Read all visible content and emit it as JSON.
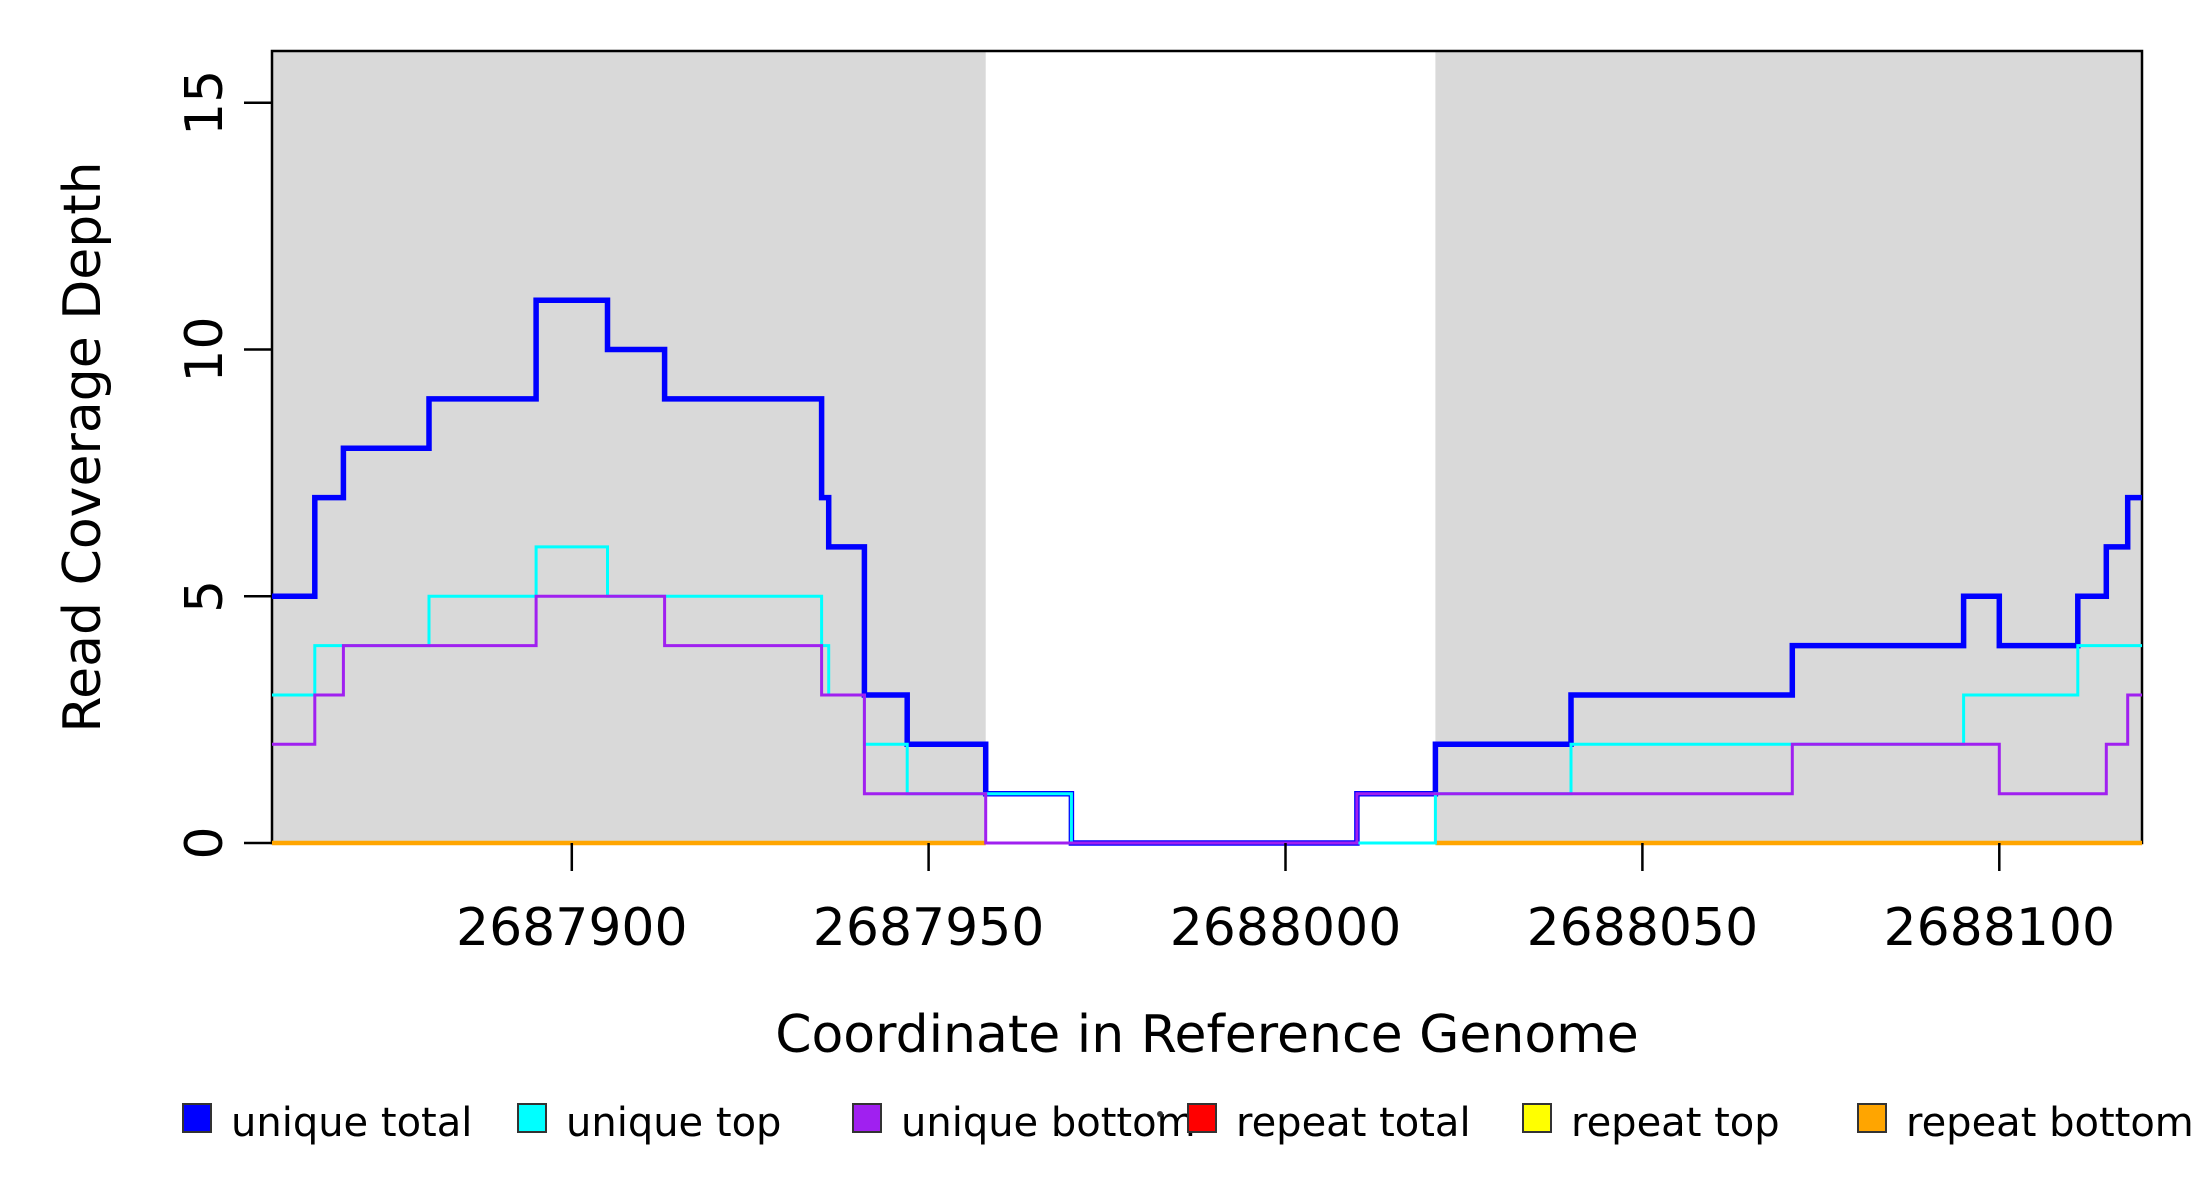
{
  "chart_data": {
    "type": "line",
    "subtype": "step-coverage",
    "title": "",
    "xlabel": "Coordinate in Reference Genome",
    "ylabel": "Read Coverage Depth",
    "xlim": [
      2687858,
      2688120
    ],
    "ylim": [
      0,
      16.05
    ],
    "grid": false,
    "legend_position": "bottom",
    "shade_color": "#D9D9D9",
    "shaded_regions": [
      {
        "from": 2687858,
        "to": 2687958
      },
      {
        "from": 2688021,
        "to": 2688120
      }
    ],
    "x_ticks": [
      {
        "value": 2687900,
        "label": "2687900"
      },
      {
        "value": 2687950,
        "label": "2687950"
      },
      {
        "value": 2688000,
        "label": "2688000"
      },
      {
        "value": 2688050,
        "label": "2688050"
      },
      {
        "value": 2688100,
        "label": "2688100"
      }
    ],
    "y_ticks": [
      {
        "value": 0,
        "label": "0"
      },
      {
        "value": 5,
        "label": "5"
      },
      {
        "value": 10,
        "label": "10"
      },
      {
        "value": 15,
        "label": "15"
      }
    ],
    "draw_order": [
      "repeat top",
      "repeat total",
      "repeat bottom",
      "unique total",
      "unique top",
      "unique bottom"
    ],
    "series": [
      {
        "name": "unique total",
        "color": "#0000FF",
        "line_width": 5.5,
        "clip_to_shade": false,
        "points": [
          [
            2687858,
            5
          ],
          [
            2687864,
            7
          ],
          [
            2687868,
            8
          ],
          [
            2687880,
            9
          ],
          [
            2687895,
            11
          ],
          [
            2687905,
            10
          ],
          [
            2687913,
            9
          ],
          [
            2687935,
            7
          ],
          [
            2687936,
            6
          ],
          [
            2687941,
            3
          ],
          [
            2687947,
            2
          ],
          [
            2687958,
            1
          ],
          [
            2687970,
            0
          ],
          [
            2688010,
            1
          ],
          [
            2688021,
            2
          ],
          [
            2688040,
            3
          ],
          [
            2688071,
            4
          ],
          [
            2688095,
            5
          ],
          [
            2688100,
            4
          ],
          [
            2688111,
            5
          ],
          [
            2688115,
            6
          ],
          [
            2688118,
            7
          ]
        ]
      },
      {
        "name": "unique top",
        "color": "#00FFFF",
        "line_width": 3,
        "clip_to_shade": false,
        "points": [
          [
            2687858,
            3
          ],
          [
            2687864,
            4
          ],
          [
            2687880,
            5
          ],
          [
            2687895,
            6
          ],
          [
            2687905,
            5
          ],
          [
            2687935,
            4
          ],
          [
            2687936,
            3
          ],
          [
            2687941,
            2
          ],
          [
            2687947,
            1
          ],
          [
            2687970,
            0
          ],
          [
            2688021,
            1
          ],
          [
            2688040,
            2
          ],
          [
            2688095,
            3
          ],
          [
            2688111,
            4
          ]
        ]
      },
      {
        "name": "unique bottom",
        "color": "#A020F0",
        "line_width": 3,
        "clip_to_shade": false,
        "points": [
          [
            2687858,
            2
          ],
          [
            2687864,
            3
          ],
          [
            2687868,
            4
          ],
          [
            2687895,
            5
          ],
          [
            2687913,
            4
          ],
          [
            2687935,
            3
          ],
          [
            2687941,
            1
          ],
          [
            2687958,
            0
          ],
          [
            2688010,
            1
          ],
          [
            2688071,
            2
          ],
          [
            2688100,
            1
          ],
          [
            2688115,
            2
          ],
          [
            2688118,
            3
          ]
        ]
      },
      {
        "name": "repeat total",
        "color": "#FF0000",
        "line_width": 3,
        "clip_to_shade": false,
        "points": [
          [
            2687858,
            0
          ]
        ]
      },
      {
        "name": "repeat top",
        "color": "#FFFF00",
        "line_width": 3,
        "clip_to_shade": false,
        "points": [
          [
            2687858,
            0
          ]
        ]
      },
      {
        "name": "repeat bottom",
        "color": "#FFA500",
        "line_width": 4.5,
        "clip_to_shade": true,
        "points": [
          [
            2687858,
            0
          ]
        ]
      }
    ]
  },
  "legend": {
    "items": [
      {
        "label": "unique total",
        "color": "#0000FF"
      },
      {
        "label": "unique top",
        "color": "#00FFFF"
      },
      {
        "label": "unique bottom",
        "color": "#A020F0"
      },
      {
        "label": "repeat total",
        "color": "#FF0000"
      },
      {
        "label": "repeat top",
        "color": "#FFFF00"
      },
      {
        "label": "repeat bottom",
        "color": "#FFA500"
      }
    ]
  }
}
